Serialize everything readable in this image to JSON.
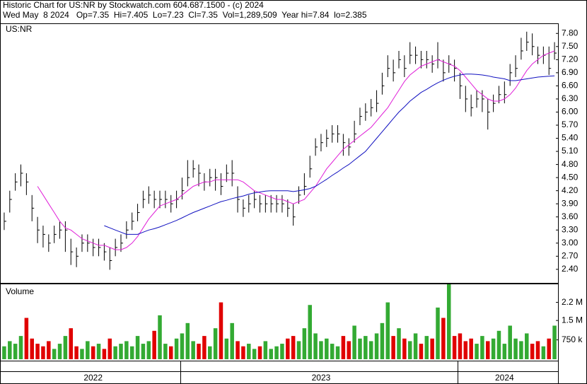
{
  "header": {
    "title": "Historic Chart for US:NR by Stockwatch.com 604.687.1500 - (c) 2024",
    "quote": "Wed May  8 2024   Op=7.35  Hi=7.405  Lo=7.23  Cl=7.35  Vol=1,289,509  Year hi=7.84  lo=2.385"
  },
  "chart_data": [
    {
      "type": "ohlc",
      "label": "US:NR",
      "color": "#000000",
      "categories": [
        null,
        null,
        null,
        null,
        null,
        null,
        null,
        null,
        null,
        null,
        null,
        null,
        null,
        null,
        null,
        null,
        "2022",
        null,
        null,
        null,
        null,
        null,
        null,
        null,
        null,
        null,
        null,
        null,
        null,
        null,
        null,
        null,
        null,
        null,
        null,
        null,
        null,
        null,
        null,
        null,
        null,
        null,
        null,
        null,
        null,
        null,
        null,
        null,
        null,
        null,
        null,
        null,
        null,
        null,
        null,
        null,
        null,
        "2023",
        null,
        null,
        null,
        null,
        null,
        null,
        null,
        null,
        null,
        null,
        null,
        null,
        null,
        null,
        null,
        null,
        null,
        null,
        null,
        null,
        null,
        null,
        null,
        null,
        null,
        null,
        null,
        null,
        null,
        null,
        null,
        null,
        "2024",
        null,
        null,
        null,
        null,
        null,
        null,
        null,
        null,
        null
      ],
      "high": [
        3.7,
        4.2,
        4.6,
        4.8,
        4.6,
        4.1,
        3.6,
        3.4,
        3.2,
        3.4,
        3.5,
        3.5,
        3.1,
        2.9,
        3.2,
        3.2,
        3.1,
        3.1,
        3.0,
        2.9,
        3.1,
        3.2,
        3.5,
        3.7,
        3.9,
        4.2,
        4.3,
        4.2,
        4.2,
        4.2,
        4.1,
        4.2,
        4.5,
        4.9,
        4.9,
        4.8,
        4.6,
        4.7,
        4.7,
        4.6,
        4.8,
        4.9,
        4.3,
        4.0,
        4.1,
        4.2,
        4.1,
        4.1,
        4.1,
        4.1,
        4.1,
        4.0,
        3.9,
        4.3,
        4.6,
        5.0,
        5.4,
        5.5,
        5.6,
        5.7,
        5.7,
        5.5,
        5.4,
        5.8,
        6.1,
        6.2,
        6.3,
        6.5,
        6.9,
        7.3,
        7.2,
        7.4,
        7.3,
        7.6,
        7.5,
        7.4,
        7.4,
        7.3,
        7.6,
        7.2,
        7.3,
        7.2,
        6.9,
        6.6,
        6.4,
        6.5,
        6.5,
        6.3,
        6.4,
        6.6,
        6.7,
        7.1,
        7.3,
        7.7,
        7.84,
        7.8,
        7.5,
        7.5,
        7.5,
        7.6
      ],
      "low": [
        3.3,
        3.7,
        4.2,
        4.3,
        4.1,
        3.5,
        3.0,
        2.9,
        2.8,
        3.0,
        3.1,
        2.8,
        2.5,
        2.45,
        2.8,
        2.8,
        2.7,
        2.7,
        2.6,
        2.39,
        2.7,
        2.8,
        3.1,
        3.3,
        3.5,
        3.8,
        3.9,
        3.8,
        3.8,
        3.8,
        3.7,
        3.8,
        4.0,
        4.3,
        4.5,
        4.3,
        4.2,
        4.3,
        4.2,
        4.1,
        4.4,
        4.3,
        3.7,
        3.6,
        3.7,
        3.8,
        3.7,
        3.7,
        3.7,
        3.7,
        3.7,
        3.6,
        3.4,
        3.9,
        4.1,
        4.5,
        5.0,
        5.1,
        5.2,
        5.3,
        5.3,
        5.0,
        5.0,
        5.3,
        5.7,
        5.8,
        5.9,
        6.0,
        6.4,
        6.8,
        6.7,
        7.0,
        6.8,
        7.1,
        7.1,
        7.0,
        7.0,
        6.9,
        7.0,
        6.7,
        6.9,
        6.7,
        6.3,
        6.0,
        5.9,
        6.1,
        6.0,
        5.6,
        6.0,
        6.2,
        6.2,
        6.6,
        6.8,
        7.2,
        7.4,
        7.3,
        7.1,
        7.1,
        6.85,
        7.2
      ],
      "close": [
        3.5,
        4.0,
        4.4,
        4.6,
        4.4,
        3.8,
        3.3,
        3.2,
        3.0,
        3.2,
        3.3,
        3.3,
        2.8,
        2.7,
        3.0,
        3.0,
        2.9,
        2.9,
        2.8,
        2.6,
        2.9,
        3.0,
        3.3,
        3.5,
        3.7,
        4.0,
        4.1,
        4.0,
        4.0,
        4.0,
        3.9,
        4.0,
        4.2,
        4.5,
        4.7,
        4.6,
        4.4,
        4.5,
        4.5,
        4.3,
        4.6,
        4.6,
        4.0,
        3.8,
        3.9,
        4.0,
        3.9,
        3.9,
        3.9,
        3.9,
        3.9,
        3.8,
        3.6,
        4.1,
        4.3,
        4.7,
        5.2,
        5.3,
        5.4,
        5.5,
        5.5,
        5.3,
        5.2,
        5.5,
        5.9,
        6.0,
        6.1,
        6.2,
        6.6,
        7.0,
        6.9,
        7.2,
        7.0,
        7.3,
        7.3,
        7.2,
        7.2,
        7.1,
        7.2,
        6.9,
        7.1,
        7.0,
        6.6,
        6.3,
        6.1,
        6.3,
        6.3,
        6.0,
        6.2,
        6.4,
        6.4,
        6.9,
        7.0,
        7.4,
        7.6,
        7.5,
        7.3,
        7.3,
        7.0,
        7.35
      ],
      "moving_averages": [
        {
          "color": "#e020d8",
          "values": [
            null,
            null,
            null,
            null,
            null,
            null,
            4.3,
            4.1,
            3.9,
            3.7,
            3.5,
            3.35,
            3.3,
            3.2,
            3.1,
            3.05,
            3.0,
            2.95,
            2.95,
            2.9,
            2.85,
            2.85,
            2.9,
            3.0,
            3.15,
            3.35,
            3.55,
            3.7,
            3.85,
            3.9,
            3.95,
            4.0,
            4.1,
            4.2,
            4.3,
            4.35,
            4.4,
            4.4,
            4.45,
            4.45,
            4.45,
            4.45,
            4.45,
            4.4,
            4.3,
            4.2,
            4.15,
            4.1,
            4.05,
            4.0,
            4.0,
            3.95,
            3.9,
            3.95,
            4.0,
            4.15,
            4.3,
            4.5,
            4.7,
            4.85,
            5.0,
            5.15,
            5.25,
            5.35,
            5.45,
            5.55,
            5.65,
            5.8,
            5.95,
            6.1,
            6.3,
            6.5,
            6.7,
            6.85,
            6.95,
            7.05,
            7.1,
            7.15,
            7.2,
            7.15,
            7.1,
            7.05,
            6.95,
            6.8,
            6.65,
            6.5,
            6.4,
            6.3,
            6.25,
            6.25,
            6.3,
            6.4,
            6.55,
            6.75,
            6.95,
            7.1,
            7.2,
            7.3,
            7.35,
            7.4
          ]
        },
        {
          "color": "#1010c0",
          "values": [
            null,
            null,
            null,
            null,
            null,
            null,
            null,
            null,
            null,
            null,
            null,
            null,
            null,
            null,
            null,
            null,
            null,
            null,
            3.4,
            3.35,
            3.3,
            3.25,
            3.2,
            3.2,
            3.2,
            3.25,
            3.3,
            3.33,
            3.37,
            3.42,
            3.47,
            3.52,
            3.58,
            3.64,
            3.7,
            3.75,
            3.8,
            3.85,
            3.9,
            3.95,
            3.98,
            4.02,
            4.05,
            4.08,
            4.12,
            4.15,
            4.17,
            4.19,
            4.2,
            4.2,
            4.2,
            4.2,
            4.18,
            4.2,
            4.22,
            4.25,
            4.3,
            4.38,
            4.46,
            4.55,
            4.63,
            4.72,
            4.8,
            4.9,
            5.0,
            5.1,
            5.25,
            5.4,
            5.55,
            5.7,
            5.85,
            6.0,
            6.12,
            6.25,
            6.35,
            6.45,
            6.52,
            6.6,
            6.67,
            6.73,
            6.78,
            6.82,
            6.85,
            6.87,
            6.87,
            6.86,
            6.85,
            6.83,
            6.8,
            6.78,
            6.76,
            6.72,
            6.72,
            6.74,
            6.76,
            6.78,
            6.8,
            6.81,
            6.82,
            6.83
          ]
        }
      ],
      "ylim": [
        2.09,
        7.95
      ],
      "yticks": [
        {
          "value": 2.4,
          "label": "2.40"
        },
        {
          "value": 2.7,
          "label": "2.70"
        },
        {
          "value": 3.0,
          "label": "3.00"
        },
        {
          "value": 3.3,
          "label": "3.30"
        },
        {
          "value": 3.6,
          "label": "3.60"
        },
        {
          "value": 3.9,
          "label": "3.90"
        },
        {
          "value": 4.2,
          "label": "4.20"
        },
        {
          "value": 4.5,
          "label": "4.50"
        },
        {
          "value": 4.8,
          "label": "4.80"
        },
        {
          "value": 5.1,
          "label": "5.10"
        },
        {
          "value": 5.4,
          "label": "5.40"
        },
        {
          "value": 5.7,
          "label": "5.70"
        },
        {
          "value": 6.0,
          "label": "6.00"
        },
        {
          "value": 6.3,
          "label": "6.30"
        },
        {
          "value": 6.6,
          "label": "6.60"
        },
        {
          "value": 6.9,
          "label": "6.90"
        },
        {
          "value": 7.2,
          "label": "7.20"
        },
        {
          "value": 7.5,
          "label": "7.50"
        },
        {
          "value": 7.8,
          "label": "7.80"
        }
      ]
    },
    {
      "type": "bar",
      "label": "Volume",
      "up_color": "#33aa33",
      "down_color": "#e00000",
      "values": [
        500000,
        700000,
        600000,
        900000,
        1600000,
        800000,
        600000,
        500000,
        700000,
        400000,
        600000,
        900000,
        1200000,
        500000,
        400000,
        700000,
        500000,
        600000,
        400000,
        800000,
        500000,
        600000,
        700000,
        500000,
        900000,
        600000,
        700000,
        1100000,
        1700000,
        600000,
        500000,
        800000,
        1000000,
        1400000,
        700000,
        600000,
        900000,
        500000,
        1200000,
        2200000,
        800000,
        1400000,
        700000,
        500000,
        600000,
        400000,
        500000,
        700000,
        400000,
        500000,
        600000,
        800000,
        900000,
        700000,
        1200000,
        2100000,
        1000000,
        700000,
        800000,
        600000,
        500000,
        900000,
        700000,
        1300000,
        800000,
        900000,
        700000,
        1000000,
        1400000,
        2200000,
        900000,
        1200000,
        800000,
        700000,
        1000000,
        600000,
        900000,
        800000,
        2000000,
        1600000,
        2900000,
        900000,
        1000000,
        700000,
        800000,
        600000,
        900000,
        700000,
        800000,
        1100000,
        600000,
        1300000,
        800000,
        700000,
        1000000,
        600000,
        700000,
        500000,
        800000,
        1300000
      ],
      "ylim": [
        0,
        2900000
      ],
      "yticks": [
        {
          "value": 750000,
          "label": "750 k"
        },
        {
          "value": 1500000,
          "label": "1.5 M"
        },
        {
          "value": 2200000,
          "label": "2.2 M"
        }
      ]
    }
  ]
}
